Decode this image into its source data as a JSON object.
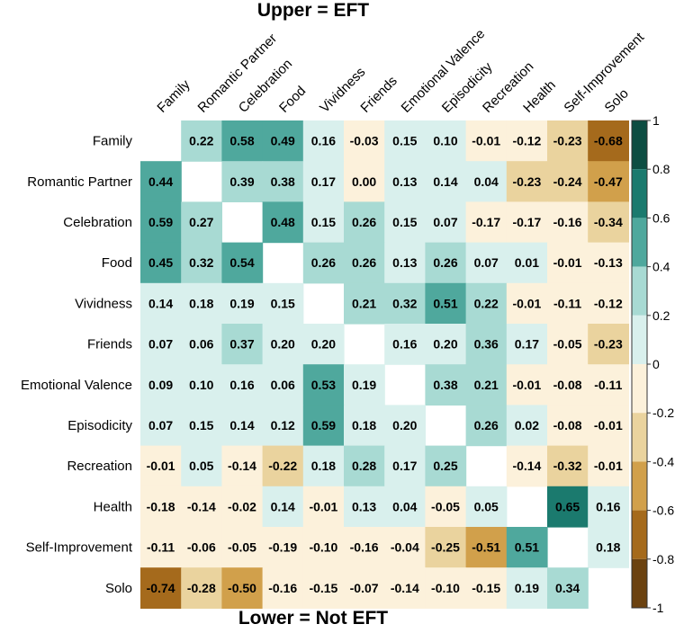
{
  "chart_data": {
    "type": "heatmap",
    "title_upper": "Upper = EFT",
    "title_lower": "Lower = Not EFT",
    "categories": [
      "Family",
      "Romantic Partner",
      "Celebration",
      "Food",
      "Vividness",
      "Friends",
      "Emotional Valence",
      "Episodicity",
      "Recreation",
      "Health",
      "Self-Improvement",
      "Solo"
    ],
    "matrix": [
      [
        null,
        0.22,
        0.58,
        0.49,
        0.16,
        -0.03,
        0.15,
        0.1,
        -0.01,
        -0.12,
        -0.23,
        -0.68
      ],
      [
        0.44,
        null,
        0.39,
        0.38,
        0.17,
        0.0,
        0.13,
        0.14,
        0.04,
        -0.23,
        -0.24,
        -0.47
      ],
      [
        0.59,
        0.27,
        null,
        0.48,
        0.15,
        0.26,
        0.15,
        0.07,
        -0.17,
        -0.17,
        -0.16,
        -0.34
      ],
      [
        0.45,
        0.32,
        0.54,
        null,
        0.26,
        0.26,
        0.13,
        0.26,
        0.07,
        0.01,
        -0.01,
        -0.13
      ],
      [
        0.14,
        0.18,
        0.19,
        0.15,
        null,
        0.21,
        0.32,
        0.51,
        0.22,
        -0.01,
        -0.11,
        -0.12
      ],
      [
        0.07,
        0.06,
        0.37,
        0.2,
        0.2,
        null,
        0.16,
        0.2,
        0.36,
        0.17,
        -0.05,
        -0.23
      ],
      [
        0.09,
        0.1,
        0.16,
        0.06,
        0.53,
        0.19,
        null,
        0.38,
        0.21,
        -0.01,
        -0.08,
        -0.11
      ],
      [
        0.07,
        0.15,
        0.14,
        0.12,
        0.59,
        0.18,
        0.2,
        null,
        0.26,
        0.02,
        -0.08,
        -0.01
      ],
      [
        -0.01,
        0.05,
        -0.14,
        -0.22,
        0.18,
        0.28,
        0.17,
        0.25,
        null,
        -0.14,
        -0.32,
        -0.01
      ],
      [
        -0.18,
        -0.14,
        -0.02,
        0.14,
        -0.01,
        0.13,
        0.04,
        -0.05,
        0.05,
        null,
        0.65,
        0.16
      ],
      [
        -0.11,
        -0.06,
        -0.05,
        -0.19,
        -0.1,
        -0.16,
        -0.04,
        -0.25,
        -0.51,
        0.51,
        null,
        0.18
      ],
      [
        -0.74,
        -0.28,
        -0.5,
        -0.16,
        -0.15,
        -0.07,
        -0.14,
        -0.1,
        -0.15,
        0.19,
        0.34,
        null
      ]
    ],
    "colorbar": {
      "range": [
        -1,
        1
      ],
      "ticks": [
        1,
        0.8,
        0.6,
        0.4,
        0.2,
        0,
        -0.2,
        -0.4,
        -0.6,
        -0.8,
        -1
      ],
      "tick_labels": [
        "1",
        "0.8",
        "0.6",
        "0.4",
        "0.2",
        "0",
        "-0.2",
        "-0.4",
        "-0.6",
        "-0.8",
        "-1"
      ],
      "bins": [
        {
          "from": 0.8,
          "to": 1.0,
          "color": "#0d4d42"
        },
        {
          "from": 0.6,
          "to": 0.8,
          "color": "#1b7a6e"
        },
        {
          "from": 0.4,
          "to": 0.6,
          "color": "#4fa89d"
        },
        {
          "from": 0.2,
          "to": 0.4,
          "color": "#a8dad3"
        },
        {
          "from": 0.0,
          "to": 0.2,
          "color": "#d9f0ed"
        },
        {
          "from": -0.2,
          "to": 0.0,
          "color": "#fcf1db"
        },
        {
          "from": -0.4,
          "to": -0.2,
          "color": "#ead39e"
        },
        {
          "from": -0.6,
          "to": -0.4,
          "color": "#d1a04b"
        },
        {
          "from": -0.8,
          "to": -0.6,
          "color": "#a56a1c"
        },
        {
          "from": -1.0,
          "to": -0.8,
          "color": "#6b4210"
        }
      ]
    }
  }
}
